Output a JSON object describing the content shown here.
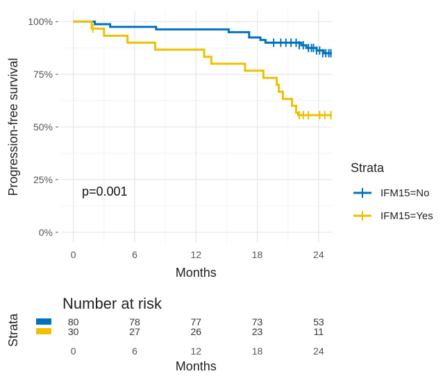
{
  "chart_data": [
    {
      "type": "line",
      "subtype": "kaplan-meier step",
      "ylabel": "Progression-free survival",
      "xlabel": "Months",
      "xlim": [
        -1.2,
        25.3
      ],
      "ylim": [
        -0.05,
        1.05
      ],
      "x_ticks": [
        0,
        6,
        12,
        18,
        24
      ],
      "y_ticks": [
        {
          "value": 0,
          "label": "0%"
        },
        {
          "value": 0.25,
          "label": "25%"
        },
        {
          "value": 0.5,
          "label": "50%"
        },
        {
          "value": 0.75,
          "label": "75%"
        },
        {
          "value": 1.0,
          "label": "100%"
        }
      ],
      "grid": true,
      "annotation": "p=0.001",
      "legend": {
        "title": "Strata",
        "placement": "right",
        "entries": [
          "IFM15=No",
          "IFM15=Yes"
        ]
      },
      "series": [
        {
          "name": "IFM15=No",
          "color": "#0072BD",
          "steps": [
            [
              0,
              1.0
            ],
            [
              2.1,
              0.988
            ],
            [
              3.6,
              0.975
            ],
            [
              5.3,
              0.975
            ],
            [
              8.1,
              0.963
            ],
            [
              13.1,
              0.963
            ],
            [
              15.2,
              0.95
            ],
            [
              16.4,
              0.95
            ],
            [
              17.2,
              0.925
            ],
            [
              18.3,
              0.913
            ],
            [
              18.8,
              0.9
            ],
            [
              22.0,
              0.9
            ],
            [
              22.3,
              0.888
            ],
            [
              22.6,
              0.888
            ],
            [
              22.8,
              0.875
            ],
            [
              23.6,
              0.875
            ],
            [
              23.8,
              0.863
            ],
            [
              24.2,
              0.863
            ],
            [
              24.5,
              0.85
            ],
            [
              25.3,
              0.85
            ]
          ],
          "censors": [
            [
              19.6,
              0.9
            ],
            [
              20.3,
              0.9
            ],
            [
              20.8,
              0.9
            ],
            [
              21.3,
              0.9
            ],
            [
              21.8,
              0.9
            ],
            [
              22.1,
              0.888
            ],
            [
              22.5,
              0.888
            ],
            [
              23.0,
              0.875
            ],
            [
              23.3,
              0.875
            ],
            [
              23.5,
              0.875
            ],
            [
              23.8,
              0.863
            ],
            [
              24.1,
              0.863
            ],
            [
              24.4,
              0.85
            ],
            [
              24.7,
              0.85
            ],
            [
              25.0,
              0.85
            ],
            [
              25.2,
              0.85
            ]
          ]
        },
        {
          "name": "IFM15=Yes",
          "color": "#EFC000",
          "steps": [
            [
              0,
              1.0
            ],
            [
              1.8,
              0.967
            ],
            [
              3.0,
              0.933
            ],
            [
              5.3,
              0.9
            ],
            [
              8.0,
              0.867
            ],
            [
              12.8,
              0.833
            ],
            [
              13.5,
              0.8
            ],
            [
              16.8,
              0.767
            ],
            [
              18.6,
              0.733
            ],
            [
              19.9,
              0.7
            ],
            [
              20.1,
              0.667
            ],
            [
              20.5,
              0.633
            ],
            [
              21.4,
              0.6
            ],
            [
              21.8,
              0.567
            ],
            [
              22.0,
              0.556
            ],
            [
              25.3,
              0.556
            ]
          ],
          "censors": [
            [
              1.9,
              0.967
            ],
            [
              22.1,
              0.556
            ],
            [
              22.5,
              0.556
            ],
            [
              23.0,
              0.556
            ],
            [
              24.1,
              0.556
            ],
            [
              24.6,
              0.556
            ],
            [
              25.2,
              0.556
            ]
          ]
        }
      ]
    },
    {
      "type": "table",
      "title": "Number at risk",
      "row_axis_label": "Strata",
      "xlabel": "Months",
      "x_ticks": [
        0,
        6,
        12,
        18,
        24
      ],
      "rows": [
        {
          "stratum": "IFM15=No",
          "color": "#0072BD",
          "values": [
            80,
            78,
            77,
            73,
            53
          ]
        },
        {
          "stratum": "IFM15=Yes",
          "color": "#EFC000",
          "values": [
            30,
            27,
            26,
            23,
            11
          ]
        }
      ]
    }
  ]
}
